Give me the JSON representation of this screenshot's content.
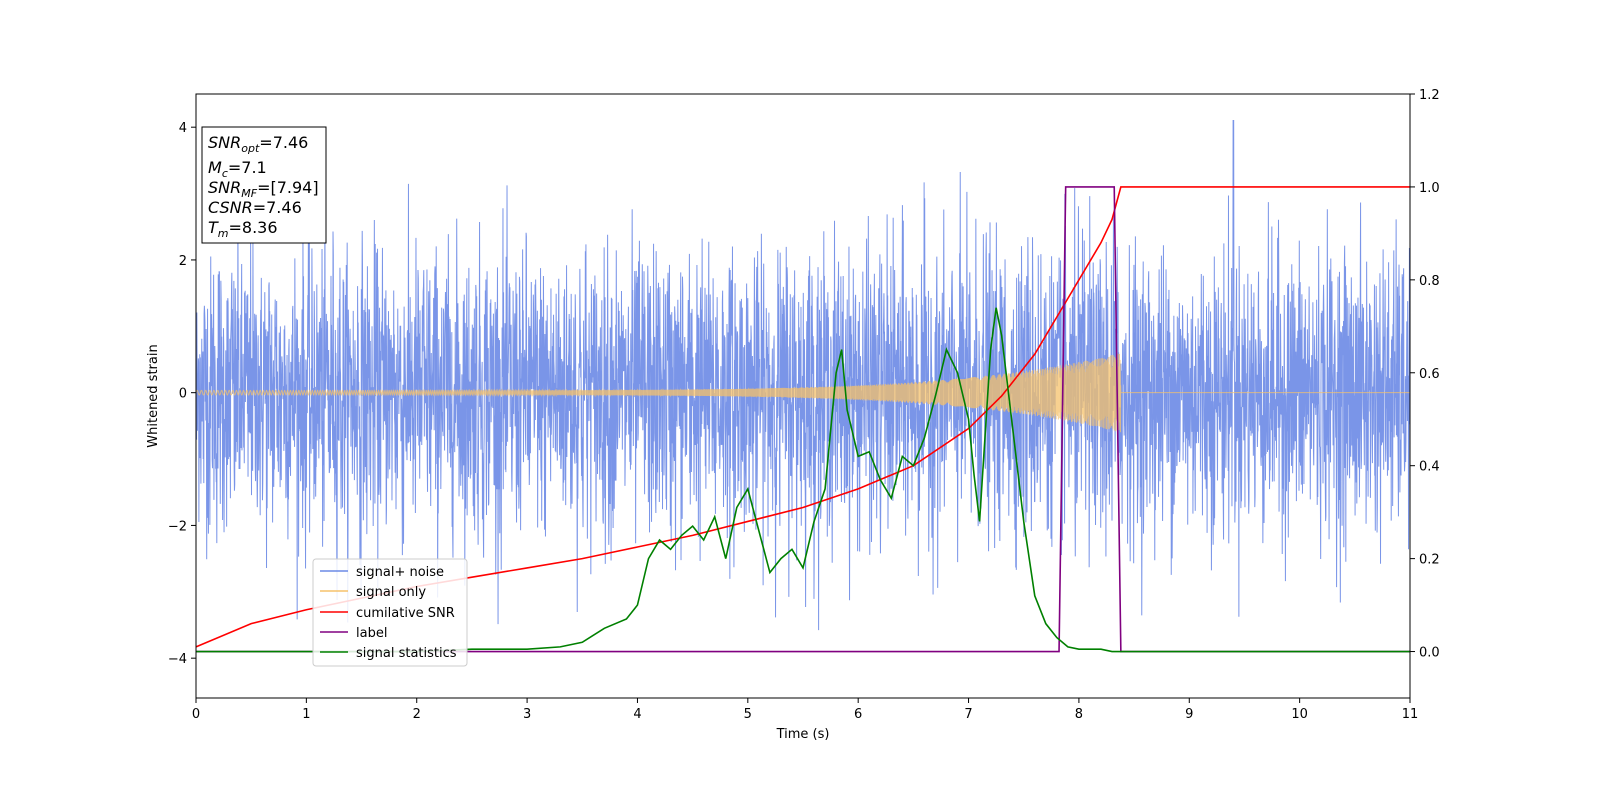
{
  "chart_data": {
    "type": "line",
    "xlabel": "Time (s)",
    "ylabel": "Whitened strain",
    "xlim": [
      0,
      11
    ],
    "ylim": [
      -4.6,
      4.5
    ],
    "y2lim": [
      -0.1,
      1.2
    ],
    "x_ticks": [
      "0",
      "1",
      "2",
      "3",
      "4",
      "5",
      "6",
      "7",
      "8",
      "9",
      "10",
      "11"
    ],
    "y_ticks": [
      "−4",
      "−2",
      "0",
      "2",
      "4"
    ],
    "y2_ticks": [
      "0.0",
      "0.2",
      "0.4",
      "0.6",
      "0.8",
      "1.0",
      "1.2"
    ],
    "legend_position": "lower-left",
    "grid": false,
    "colors": {
      "signal_noise": "#6b8ae6",
      "signal_only": "#f5c26b",
      "cumulative_snr": "#ff0000",
      "label": "#800080",
      "signal_statistics": "#008000"
    },
    "series": [
      {
        "name": "signal+ noise",
        "axis": "left",
        "description_values": {
          "amplitude_range": [
            -3.8,
            4.1
          ],
          "peak_x": 9.4,
          "peak_y": 4.1
        }
      },
      {
        "name": "signal only",
        "axis": "left",
        "chirp_end_time": 8.38,
        "chirp_end_amplitude": 0.6
      },
      {
        "name": "cumilative SNR",
        "axis": "right",
        "x": [
          0,
          0.5,
          1,
          1.5,
          2,
          2.5,
          3,
          3.5,
          4,
          4.5,
          5,
          5.5,
          6,
          6.5,
          7,
          7.3,
          7.6,
          7.8,
          8.0,
          8.2,
          8.3,
          8.38,
          9,
          10,
          11
        ],
        "y": [
          0.01,
          0.06,
          0.09,
          0.115,
          0.14,
          0.16,
          0.18,
          0.2,
          0.225,
          0.25,
          0.28,
          0.31,
          0.35,
          0.4,
          0.48,
          0.55,
          0.64,
          0.72,
          0.8,
          0.88,
          0.93,
          1.0,
          1.0,
          1.0,
          1.0
        ]
      },
      {
        "name": "label",
        "axis": "right",
        "x": [
          0,
          7.82,
          7.88,
          8.32,
          8.38,
          11
        ],
        "y": [
          0,
          0,
          1,
          1,
          0,
          0
        ]
      },
      {
        "name": "signal statistics",
        "axis": "right",
        "x": [
          0,
          1,
          2,
          2.5,
          3,
          3.3,
          3.5,
          3.7,
          3.9,
          4.0,
          4.1,
          4.2,
          4.3,
          4.4,
          4.5,
          4.6,
          4.7,
          4.8,
          4.9,
          5.0,
          5.1,
          5.2,
          5.3,
          5.4,
          5.5,
          5.6,
          5.7,
          5.8,
          5.85,
          5.9,
          6.0,
          6.1,
          6.2,
          6.3,
          6.4,
          6.5,
          6.6,
          6.7,
          6.8,
          6.9,
          7.0,
          7.05,
          7.1,
          7.2,
          7.25,
          7.3,
          7.4,
          7.5,
          7.6,
          7.7,
          7.8,
          7.9,
          8.0,
          8.2,
          8.3,
          8.4,
          9,
          10,
          11
        ],
        "y": [
          0,
          0,
          0,
          0.005,
          0.005,
          0.01,
          0.02,
          0.05,
          0.07,
          0.1,
          0.2,
          0.24,
          0.22,
          0.25,
          0.27,
          0.24,
          0.29,
          0.2,
          0.31,
          0.35,
          0.26,
          0.17,
          0.2,
          0.22,
          0.18,
          0.28,
          0.35,
          0.6,
          0.65,
          0.52,
          0.42,
          0.43,
          0.37,
          0.33,
          0.42,
          0.4,
          0.46,
          0.55,
          0.65,
          0.6,
          0.5,
          0.38,
          0.28,
          0.65,
          0.74,
          0.68,
          0.48,
          0.28,
          0.12,
          0.06,
          0.03,
          0.01,
          0.005,
          0.005,
          0.0,
          0.0,
          0.0,
          0.0,
          0.0
        ]
      }
    ]
  },
  "info_box": {
    "snr_opt": {
      "main": "SNR",
      "sub": "opt",
      "value": "=7.46"
    },
    "mc": {
      "main": "M",
      "sub": "c",
      "value": "=7.1"
    },
    "snr_mf": {
      "main": "SNR",
      "sub": "MF",
      "value": "=[7.94]"
    },
    "csnr": {
      "main": "CSNR",
      "value": "=7.46"
    },
    "tm": {
      "main": "T",
      "sub": "m",
      "value": "=8.36"
    }
  },
  "legend": {
    "items": [
      "signal+ noise",
      "signal only",
      "cumilative SNR",
      "label",
      "signal statistics"
    ]
  }
}
